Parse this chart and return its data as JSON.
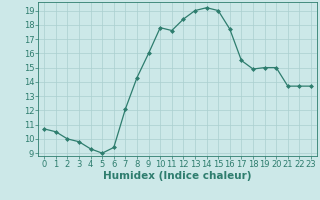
{
  "x": [
    0,
    1,
    2,
    3,
    4,
    5,
    6,
    7,
    8,
    9,
    10,
    11,
    12,
    13,
    14,
    15,
    16,
    17,
    18,
    19,
    20,
    21,
    22,
    23
  ],
  "y": [
    10.7,
    10.5,
    10.0,
    9.8,
    9.3,
    9.0,
    9.4,
    12.1,
    14.3,
    16.0,
    17.8,
    17.6,
    18.4,
    19.0,
    19.2,
    19.0,
    17.7,
    15.5,
    14.9,
    15.0,
    15.0,
    13.7,
    13.7,
    13.7
  ],
  "line_color": "#2e7d6e",
  "marker": "D",
  "marker_size": 2.0,
  "bg_color": "#cce8e8",
  "grid_color": "#aacfcf",
  "xlabel": "Humidex (Indice chaleur)",
  "xlim": [
    -0.5,
    23.5
  ],
  "ylim": [
    8.8,
    19.6
  ],
  "yticks": [
    9,
    10,
    11,
    12,
    13,
    14,
    15,
    16,
    17,
    18,
    19
  ],
  "xticks": [
    0,
    1,
    2,
    3,
    4,
    5,
    6,
    7,
    8,
    9,
    10,
    11,
    12,
    13,
    14,
    15,
    16,
    17,
    18,
    19,
    20,
    21,
    22,
    23
  ],
  "tick_fontsize": 6.0,
  "xlabel_fontsize": 7.5
}
